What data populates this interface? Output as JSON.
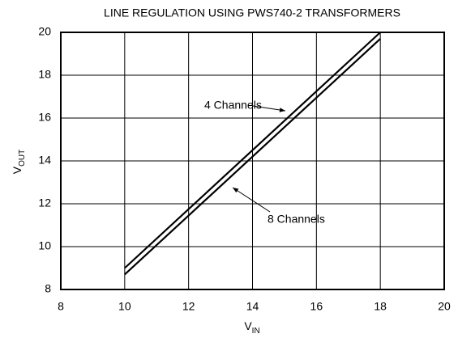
{
  "chart_data": {
    "type": "line",
    "title": "LINE REGULATION USING PWS740-2 TRANSFORMERS",
    "x_label": {
      "main": "V",
      "sub": "IN"
    },
    "y_label": {
      "main": "V",
      "sub": "OUT"
    },
    "x": [
      10,
      18
    ],
    "series": [
      {
        "name": "4 Channels",
        "color": "#000000",
        "values": [
          9.0,
          20.0
        ]
      },
      {
        "name": "8 Channels",
        "color": "#000000",
        "values": [
          8.7,
          19.7
        ]
      }
    ],
    "xlim": [
      8,
      20
    ],
    "ylim": [
      8,
      20
    ],
    "xticks": [
      8,
      10,
      12,
      14,
      16,
      18,
      20
    ],
    "yticks": [
      8,
      10,
      12,
      14,
      16,
      18,
      20
    ],
    "grid": true
  }
}
